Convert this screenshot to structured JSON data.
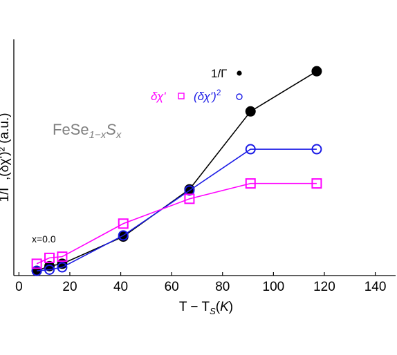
{
  "chart_data": {
    "type": "line",
    "xlabel_parts": [
      "T − T",
      "S",
      "(",
      "K",
      ")"
    ],
    "ylabel": "1/Γ ,(δχ')² (a.u.)",
    "xlim": [
      -2,
      148
    ],
    "ylim": [
      0,
      1.0
    ],
    "x_ticks": [
      0,
      20,
      40,
      60,
      80,
      100,
      120,
      140
    ],
    "tick_labels": [
      "0",
      "20",
      "40",
      "60",
      "80",
      "100",
      "120",
      "140"
    ],
    "grid": false,
    "annotations": {
      "material": "FeSe",
      "material_sub": "1−x",
      "material_s": "S",
      "material_s_sub": "x",
      "composition": "x=0.0"
    },
    "legend_placement": "top-right",
    "series": [
      {
        "legend_label": "1/Γ",
        "marker": "filled-circle",
        "color": "#000000",
        "x": [
          7,
          12,
          17,
          41,
          67,
          91,
          117
        ],
        "y": [
          0.02,
          0.04,
          0.05,
          0.165,
          0.365,
          0.695,
          0.865
        ]
      },
      {
        "legend_label": "(δχ')²",
        "legend_sup": "2",
        "legend_base": "(δχ')",
        "marker": "open-circle",
        "color": "#1a1ae6",
        "x": [
          7,
          12,
          17,
          41,
          67,
          91,
          117
        ],
        "y": [
          0.02,
          0.025,
          0.035,
          0.17,
          0.36,
          0.535,
          0.535
        ]
      },
      {
        "legend_label": "δχ'",
        "marker": "open-square",
        "color": "#ff00ff",
        "x": [
          7,
          12,
          17,
          41,
          67,
          91,
          117
        ],
        "y": [
          0.05,
          0.075,
          0.08,
          0.22,
          0.325,
          0.39,
          0.39
        ]
      }
    ]
  }
}
